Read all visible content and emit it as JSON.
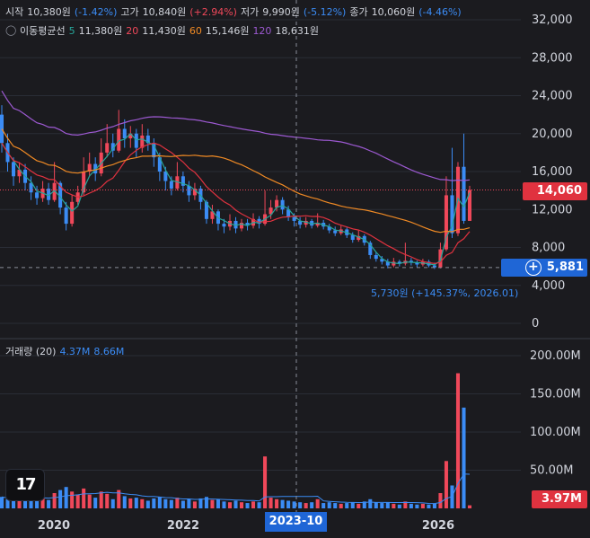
{
  "ohlc_legend": {
    "open_label": "시작",
    "open_value": "10,380원",
    "open_change": "(-1.42%)",
    "high_label": "고가",
    "high_value": "10,840원",
    "high_change": "(+2.94%)",
    "low_label": "저가",
    "low_value": "9,990원",
    "low_change": "(-5.12%)",
    "close_label": "종가",
    "close_value": "10,060원",
    "close_change": "(-4.46%)"
  },
  "ma_legend": {
    "title": "이동평균선",
    "ma5_period": "5",
    "ma5_value": "11,380원",
    "ma20_period": "20",
    "ma20_value": "11,430원",
    "ma60_period": "60",
    "ma60_value": "15,146원",
    "ma120_period": "120",
    "ma120_value": "18,631원"
  },
  "volume_legend": {
    "title": "거래량 (20)",
    "v1": "4.37M",
    "v2": "8.66M"
  },
  "price_badge": "14,060",
  "crosshair_badge": "5,881",
  "crosshair_x_label": "2023-10",
  "volume_badge": "3.97M",
  "low_annotation": "5,730원 (+145.37%, 2026.01)",
  "colors": {
    "up": "#f0485a",
    "down": "#3b8cf5",
    "ma5": "#26a69a",
    "ma20": "#e0323f",
    "ma60": "#f08a24",
    "ma120": "#9c59d1",
    "bg": "#1b1b1f"
  },
  "chart_data": {
    "type": "candlestick",
    "price_axis": {
      "ticks": [
        0,
        4000,
        8000,
        12000,
        16000,
        20000,
        24000,
        28000,
        32000
      ],
      "tick_labels": [
        "0",
        "4,000",
        "8,000",
        "12,000",
        "16,000",
        "20,000",
        "24,000",
        "28,000",
        "32,000"
      ]
    },
    "volume_axis": {
      "ticks": [
        50,
        100,
        150,
        200
      ],
      "tick_labels": [
        "50.00M",
        "100.00M",
        "150.00M",
        "200.00M"
      ]
    },
    "x_axis": {
      "ticks": [
        2020,
        2022,
        2026
      ],
      "tick_labels": [
        "2020",
        "2022",
        "2026"
      ]
    },
    "candles": [
      {
        "o": 22000,
        "c": 19000,
        "h": 23000,
        "l": 18000,
        "v": 15
      },
      {
        "o": 19000,
        "c": 17000,
        "h": 20000,
        "l": 16000,
        "v": 12
      },
      {
        "o": 17000,
        "c": 15500,
        "h": 17500,
        "l": 14500,
        "v": 18
      },
      {
        "o": 15500,
        "c": 16200,
        "h": 17000,
        "l": 14800,
        "v": 10
      },
      {
        "o": 16200,
        "c": 14800,
        "h": 16800,
        "l": 14000,
        "v": 14
      },
      {
        "o": 14800,
        "c": 13800,
        "h": 15500,
        "l": 13000,
        "v": 16
      },
      {
        "o": 13800,
        "c": 13200,
        "h": 14500,
        "l": 12500,
        "v": 12
      },
      {
        "o": 13200,
        "c": 14200,
        "h": 15000,
        "l": 12800,
        "v": 13
      },
      {
        "o": 14200,
        "c": 13000,
        "h": 14800,
        "l": 12500,
        "v": 11
      },
      {
        "o": 13000,
        "c": 14800,
        "h": 17000,
        "l": 12800,
        "v": 20
      },
      {
        "o": 14800,
        "c": 12200,
        "h": 15000,
        "l": 11500,
        "v": 24
      },
      {
        "o": 12200,
        "c": 10500,
        "h": 12800,
        "l": 9800,
        "v": 28
      },
      {
        "o": 10500,
        "c": 12800,
        "h": 13500,
        "l": 10200,
        "v": 22
      },
      {
        "o": 12800,
        "c": 13800,
        "h": 14500,
        "l": 12500,
        "v": 18
      },
      {
        "o": 13800,
        "c": 16000,
        "h": 17500,
        "l": 13500,
        "v": 26
      },
      {
        "o": 16000,
        "c": 16800,
        "h": 18000,
        "l": 15500,
        "v": 18
      },
      {
        "o": 16800,
        "c": 15800,
        "h": 17500,
        "l": 15000,
        "v": 14
      },
      {
        "o": 15800,
        "c": 18000,
        "h": 19500,
        "l": 15500,
        "v": 22
      },
      {
        "o": 18000,
        "c": 19000,
        "h": 21000,
        "l": 17500,
        "v": 19
      },
      {
        "o": 19000,
        "c": 18200,
        "h": 20000,
        "l": 17500,
        "v": 12
      },
      {
        "o": 18200,
        "c": 20500,
        "h": 22500,
        "l": 18000,
        "v": 24
      },
      {
        "o": 20500,
        "c": 19500,
        "h": 21500,
        "l": 18500,
        "v": 16
      },
      {
        "o": 19500,
        "c": 20000,
        "h": 20800,
        "l": 18500,
        "v": 13
      },
      {
        "o": 20000,
        "c": 18500,
        "h": 20500,
        "l": 17500,
        "v": 14
      },
      {
        "o": 18500,
        "c": 19800,
        "h": 21000,
        "l": 18000,
        "v": 12
      },
      {
        "o": 19800,
        "c": 19000,
        "h": 20500,
        "l": 18200,
        "v": 10
      },
      {
        "o": 19000,
        "c": 17500,
        "h": 19500,
        "l": 16500,
        "v": 13
      },
      {
        "o": 17500,
        "c": 16000,
        "h": 18000,
        "l": 15000,
        "v": 15
      },
      {
        "o": 16000,
        "c": 15000,
        "h": 16500,
        "l": 14000,
        "v": 12
      },
      {
        "o": 15000,
        "c": 14200,
        "h": 15500,
        "l": 13500,
        "v": 11
      },
      {
        "o": 14200,
        "c": 15500,
        "h": 17000,
        "l": 14000,
        "v": 14
      },
      {
        "o": 15500,
        "c": 14500,
        "h": 16000,
        "l": 13800,
        "v": 10
      },
      {
        "o": 14500,
        "c": 13500,
        "h": 15000,
        "l": 12800,
        "v": 12
      },
      {
        "o": 13500,
        "c": 14200,
        "h": 14800,
        "l": 13000,
        "v": 9
      },
      {
        "o": 14200,
        "c": 12800,
        "h": 14500,
        "l": 12000,
        "v": 13
      },
      {
        "o": 12800,
        "c": 11000,
        "h": 13000,
        "l": 10500,
        "v": 15
      },
      {
        "o": 11000,
        "c": 11800,
        "h": 12500,
        "l": 10500,
        "v": 11
      },
      {
        "o": 11800,
        "c": 10500,
        "h": 12000,
        "l": 9800,
        "v": 12
      },
      {
        "o": 10500,
        "c": 10200,
        "h": 11000,
        "l": 9500,
        "v": 9
      },
      {
        "o": 10200,
        "c": 10800,
        "h": 11500,
        "l": 9800,
        "v": 8
      },
      {
        "o": 10800,
        "c": 10000,
        "h": 11200,
        "l": 9500,
        "v": 10
      },
      {
        "o": 10000,
        "c": 10600,
        "h": 11000,
        "l": 9700,
        "v": 8
      },
      {
        "o": 10600,
        "c": 10300,
        "h": 11000,
        "l": 9800,
        "v": 7
      },
      {
        "o": 10300,
        "c": 11000,
        "h": 11600,
        "l": 10000,
        "v": 9
      },
      {
        "o": 11000,
        "c": 10500,
        "h": 11300,
        "l": 10000,
        "v": 8
      },
      {
        "o": 10500,
        "c": 11500,
        "h": 14000,
        "l": 10300,
        "v": 68
      },
      {
        "o": 11500,
        "c": 12200,
        "h": 13000,
        "l": 11000,
        "v": 14
      },
      {
        "o": 12200,
        "c": 13000,
        "h": 13500,
        "l": 11800,
        "v": 12
      },
      {
        "o": 13000,
        "c": 12000,
        "h": 13300,
        "l": 11500,
        "v": 11
      },
      {
        "o": 12000,
        "c": 11200,
        "h": 12400,
        "l": 10800,
        "v": 10
      },
      {
        "o": 11200,
        "c": 10800,
        "h": 11600,
        "l": 10200,
        "v": 9
      },
      {
        "o": 10800,
        "c": 10400,
        "h": 11200,
        "l": 10000,
        "v": 8
      },
      {
        "o": 10400,
        "c": 10800,
        "h": 11200,
        "l": 10100,
        "v": 7
      },
      {
        "o": 10800,
        "c": 10300,
        "h": 11000,
        "l": 10000,
        "v": 8
      },
      {
        "o": 10300,
        "c": 10600,
        "h": 11600,
        "l": 10100,
        "v": 12
      },
      {
        "o": 10600,
        "c": 10200,
        "h": 10900,
        "l": 9900,
        "v": 7
      },
      {
        "o": 10200,
        "c": 9800,
        "h": 10500,
        "l": 9500,
        "v": 8
      },
      {
        "o": 9800,
        "c": 9500,
        "h": 10200,
        "l": 9200,
        "v": 7
      },
      {
        "o": 9500,
        "c": 9900,
        "h": 10300,
        "l": 9300,
        "v": 6
      },
      {
        "o": 9900,
        "c": 9300,
        "h": 10100,
        "l": 9000,
        "v": 7
      },
      {
        "o": 9300,
        "c": 8800,
        "h": 9600,
        "l": 8500,
        "v": 8
      },
      {
        "o": 8800,
        "c": 9200,
        "h": 9800,
        "l": 8600,
        "v": 6
      },
      {
        "o": 9200,
        "c": 8500,
        "h": 9400,
        "l": 8200,
        "v": 9
      },
      {
        "o": 8500,
        "c": 7200,
        "h": 8700,
        "l": 6800,
        "v": 12
      },
      {
        "o": 7200,
        "c": 6800,
        "h": 7500,
        "l": 6500,
        "v": 8
      },
      {
        "o": 6800,
        "c": 6500,
        "h": 7100,
        "l": 6200,
        "v": 7
      },
      {
        "o": 6500,
        "c": 6100,
        "h": 6800,
        "l": 5800,
        "v": 8
      },
      {
        "o": 6100,
        "c": 6500,
        "h": 6900,
        "l": 5900,
        "v": 6
      },
      {
        "o": 6500,
        "c": 6300,
        "h": 6700,
        "l": 6000,
        "v": 5
      },
      {
        "o": 6300,
        "c": 6600,
        "h": 8500,
        "l": 6100,
        "v": 9
      },
      {
        "o": 6600,
        "c": 6400,
        "h": 6900,
        "l": 6100,
        "v": 6
      },
      {
        "o": 6400,
        "c": 6200,
        "h": 6600,
        "l": 5900,
        "v": 5
      },
      {
        "o": 6200,
        "c": 6500,
        "h": 6800,
        "l": 6000,
        "v": 6
      },
      {
        "o": 6500,
        "c": 6100,
        "h": 6700,
        "l": 5900,
        "v": 5
      },
      {
        "o": 6100,
        "c": 5900,
        "h": 6400,
        "l": 5730,
        "v": 6
      },
      {
        "o": 5900,
        "c": 7800,
        "h": 8500,
        "l": 5800,
        "v": 20
      },
      {
        "o": 7800,
        "c": 13500,
        "h": 15500,
        "l": 7600,
        "v": 62
      },
      {
        "o": 13500,
        "c": 9500,
        "h": 18500,
        "l": 9000,
        "v": 30
      },
      {
        "o": 9500,
        "c": 16500,
        "h": 17000,
        "l": 9200,
        "v": 177
      },
      {
        "o": 16500,
        "c": 10800,
        "h": 20000,
        "l": 10500,
        "v": 132
      },
      {
        "o": 10800,
        "c": 14060,
        "h": 14500,
        "l": 10800,
        "v": 4
      }
    ]
  }
}
